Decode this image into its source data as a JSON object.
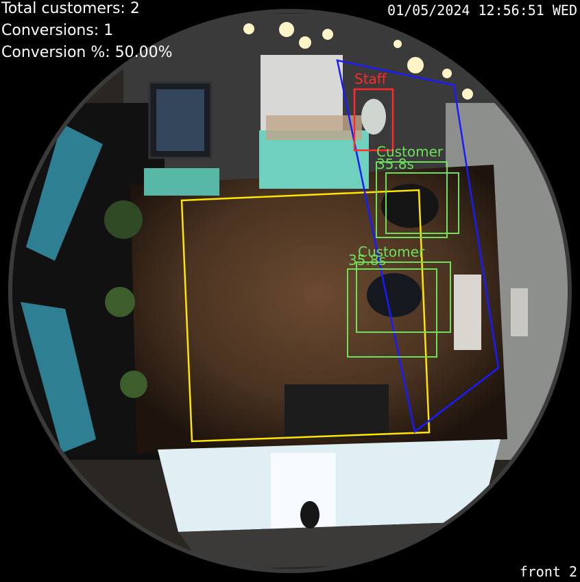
{
  "overlay": {
    "total_customers": "Total customers: 2",
    "conversions": "Conversions: 1",
    "conversion_pct": "Conversion %: 50.00%",
    "timestamp": "01/05/2024 12:56:51 WED",
    "camera_label": "front 2"
  },
  "detections": {
    "staff": {
      "label": "Staff",
      "color": "#ff2a2a"
    },
    "customer_1": {
      "label": "Customer",
      "time": "35.8s",
      "color": "#6ee05a"
    },
    "customer_2": {
      "label": "Customer",
      "time": "35.8s",
      "color": "#6ee05a"
    }
  },
  "zones": {
    "checkout_zone_color": "#ffe600",
    "counter_zone_color": "#1a1aff"
  }
}
